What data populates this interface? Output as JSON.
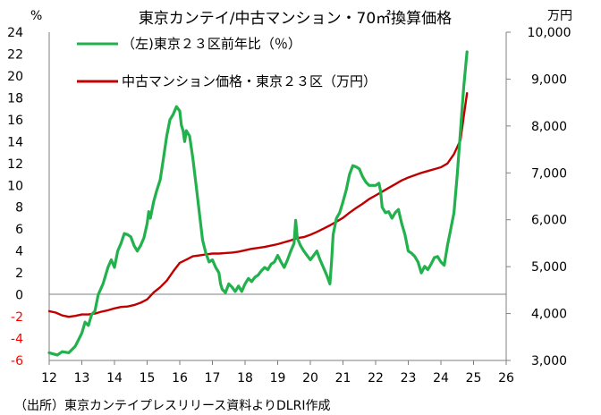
{
  "chart_data": {
    "type": "line",
    "title": "東京カンテイ/中古マンション・70㎡換算価格",
    "source": "（出所）東京カンテイプレスリリース資料よりDLRI作成",
    "y_left": {
      "unit": "%",
      "lim": [
        -6,
        24
      ],
      "ticks": [
        "24",
        "22",
        "20",
        "18",
        "16",
        "14",
        "12",
        "10",
        "8",
        "6",
        "4",
        "2",
        "0",
        "-2",
        "-4",
        "-6"
      ]
    },
    "y_right": {
      "unit": "万円",
      "lim": [
        3000,
        10000
      ],
      "ticks": [
        "10,000",
        "9,000",
        "8,000",
        "7,000",
        "6,000",
        "5,000",
        "4,000",
        "3,000"
      ]
    },
    "x": {
      "lim": [
        12,
        26
      ],
      "ticks": [
        "12",
        "13",
        "14",
        "15",
        "16",
        "17",
        "18",
        "19",
        "20",
        "21",
        "22",
        "23",
        "24",
        "25",
        "26"
      ]
    },
    "colors": {
      "growth": "#22B14C",
      "price": "#C00000",
      "negative_tick": "#FF0000"
    },
    "series": [
      {
        "name": "（左)東京２３区前年比（％）",
        "axis": "left",
        "color": "#22B14C",
        "points": [
          [
            12.0,
            -5.3
          ],
          [
            12.25,
            -5.5
          ],
          [
            12.4,
            -5.2
          ],
          [
            12.6,
            -5.3
          ],
          [
            12.8,
            -4.7
          ],
          [
            13.0,
            -3.5
          ],
          [
            13.1,
            -2.5
          ],
          [
            13.2,
            -2.8
          ],
          [
            13.3,
            -1.8
          ],
          [
            13.4,
            -1.5
          ],
          [
            13.5,
            0.0
          ],
          [
            13.65,
            1.0
          ],
          [
            13.8,
            2.5
          ],
          [
            13.9,
            3.2
          ],
          [
            14.0,
            2.5
          ],
          [
            14.1,
            4.0
          ],
          [
            14.2,
            4.7
          ],
          [
            14.3,
            5.6
          ],
          [
            14.4,
            5.5
          ],
          [
            14.5,
            5.3
          ],
          [
            14.6,
            4.5
          ],
          [
            14.7,
            4.0
          ],
          [
            14.8,
            4.5
          ],
          [
            14.9,
            5.2
          ],
          [
            15.0,
            6.5
          ],
          [
            15.05,
            7.6
          ],
          [
            15.1,
            7.0
          ],
          [
            15.2,
            8.5
          ],
          [
            15.3,
            9.6
          ],
          [
            15.4,
            10.5
          ],
          [
            15.5,
            12.5
          ],
          [
            15.6,
            14.5
          ],
          [
            15.7,
            16.0
          ],
          [
            15.8,
            16.5
          ],
          [
            15.9,
            17.2
          ],
          [
            16.0,
            16.8
          ],
          [
            16.05,
            15.5
          ],
          [
            16.1,
            15.0
          ],
          [
            16.15,
            14.0
          ],
          [
            16.2,
            15.0
          ],
          [
            16.3,
            14.5
          ],
          [
            16.4,
            12.5
          ],
          [
            16.5,
            10.0
          ],
          [
            16.6,
            7.5
          ],
          [
            16.7,
            5.0
          ],
          [
            16.8,
            3.8
          ],
          [
            16.9,
            3.0
          ],
          [
            17.0,
            3.2
          ],
          [
            17.1,
            2.5
          ],
          [
            17.2,
            2.0
          ],
          [
            17.25,
            1.0
          ],
          [
            17.3,
            0.5
          ],
          [
            17.4,
            0.2
          ],
          [
            17.5,
            1.0
          ],
          [
            17.6,
            0.7
          ],
          [
            17.7,
            0.3
          ],
          [
            17.8,
            0.8
          ],
          [
            17.9,
            0.3
          ],
          [
            18.0,
            1.0
          ],
          [
            18.1,
            1.5
          ],
          [
            18.2,
            1.2
          ],
          [
            18.3,
            1.6
          ],
          [
            18.4,
            1.8
          ],
          [
            18.5,
            2.2
          ],
          [
            18.6,
            2.5
          ],
          [
            18.7,
            2.3
          ],
          [
            18.8,
            2.8
          ],
          [
            18.9,
            3.0
          ],
          [
            19.0,
            3.6
          ],
          [
            19.1,
            3.0
          ],
          [
            19.2,
            2.5
          ],
          [
            19.3,
            3.2
          ],
          [
            19.4,
            4.0
          ],
          [
            19.5,
            4.7
          ],
          [
            19.55,
            6.8
          ],
          [
            19.6,
            5.2
          ],
          [
            19.7,
            4.5
          ],
          [
            19.8,
            4.0
          ],
          [
            19.9,
            3.6
          ],
          [
            20.0,
            3.2
          ],
          [
            20.1,
            3.6
          ],
          [
            20.2,
            4.0
          ],
          [
            20.3,
            3.2
          ],
          [
            20.4,
            2.5
          ],
          [
            20.5,
            1.8
          ],
          [
            20.6,
            1.0
          ],
          [
            20.65,
            3.0
          ],
          [
            20.7,
            5.5
          ],
          [
            20.8,
            7.0
          ],
          [
            20.9,
            7.5
          ],
          [
            21.0,
            8.5
          ],
          [
            21.1,
            9.6
          ],
          [
            21.2,
            11.0
          ],
          [
            21.3,
            11.8
          ],
          [
            21.4,
            11.7
          ],
          [
            21.5,
            11.5
          ],
          [
            21.6,
            10.8
          ],
          [
            21.7,
            10.3
          ],
          [
            21.8,
            10.0
          ],
          [
            21.9,
            10.0
          ],
          [
            22.0,
            10.0
          ],
          [
            22.1,
            10.2
          ],
          [
            22.15,
            9.5
          ],
          [
            22.2,
            8.0
          ],
          [
            22.3,
            7.5
          ],
          [
            22.4,
            7.6
          ],
          [
            22.5,
            7.0
          ],
          [
            22.6,
            7.5
          ],
          [
            22.7,
            7.8
          ],
          [
            22.8,
            6.5
          ],
          [
            22.9,
            5.5
          ],
          [
            23.0,
            4.0
          ],
          [
            23.1,
            3.8
          ],
          [
            23.2,
            3.5
          ],
          [
            23.3,
            3.0
          ],
          [
            23.4,
            2.0
          ],
          [
            23.5,
            2.6
          ],
          [
            23.6,
            2.3
          ],
          [
            23.7,
            2.8
          ],
          [
            23.8,
            3.4
          ],
          [
            23.9,
            3.5
          ],
          [
            24.0,
            3.0
          ],
          [
            24.1,
            2.7
          ],
          [
            24.2,
            4.5
          ],
          [
            24.3,
            6.0
          ],
          [
            24.4,
            7.5
          ],
          [
            24.5,
            11.0
          ],
          [
            24.6,
            15.0
          ],
          [
            24.7,
            19.0
          ],
          [
            24.8,
            22.2
          ]
        ]
      },
      {
        "name": "中古マンション価格・東京２３区（万円）",
        "axis": "right",
        "color": "#C00000",
        "points": [
          [
            12.0,
            4050
          ],
          [
            12.2,
            4020
          ],
          [
            12.4,
            3960
          ],
          [
            12.6,
            3930
          ],
          [
            12.8,
            3950
          ],
          [
            13.0,
            3980
          ],
          [
            13.2,
            3980
          ],
          [
            13.4,
            4000
          ],
          [
            13.6,
            4040
          ],
          [
            13.8,
            4070
          ],
          [
            14.0,
            4110
          ],
          [
            14.2,
            4140
          ],
          [
            14.4,
            4150
          ],
          [
            14.6,
            4180
          ],
          [
            14.8,
            4230
          ],
          [
            15.0,
            4300
          ],
          [
            15.2,
            4450
          ],
          [
            15.4,
            4560
          ],
          [
            15.6,
            4700
          ],
          [
            15.8,
            4900
          ],
          [
            16.0,
            5080
          ],
          [
            16.2,
            5150
          ],
          [
            16.4,
            5220
          ],
          [
            16.6,
            5240
          ],
          [
            16.8,
            5260
          ],
          [
            17.0,
            5280
          ],
          [
            17.2,
            5280
          ],
          [
            17.4,
            5290
          ],
          [
            17.6,
            5300
          ],
          [
            17.8,
            5320
          ],
          [
            18.0,
            5350
          ],
          [
            18.2,
            5380
          ],
          [
            18.4,
            5400
          ],
          [
            18.6,
            5420
          ],
          [
            18.8,
            5450
          ],
          [
            19.0,
            5480
          ],
          [
            19.2,
            5520
          ],
          [
            19.4,
            5560
          ],
          [
            19.6,
            5610
          ],
          [
            19.8,
            5630
          ],
          [
            20.0,
            5680
          ],
          [
            20.2,
            5740
          ],
          [
            20.4,
            5810
          ],
          [
            20.6,
            5880
          ],
          [
            20.8,
            5960
          ],
          [
            21.0,
            6040
          ],
          [
            21.2,
            6150
          ],
          [
            21.4,
            6250
          ],
          [
            21.6,
            6340
          ],
          [
            21.8,
            6440
          ],
          [
            22.0,
            6520
          ],
          [
            22.2,
            6600
          ],
          [
            22.4,
            6680
          ],
          [
            22.6,
            6760
          ],
          [
            22.8,
            6840
          ],
          [
            23.0,
            6900
          ],
          [
            23.2,
            6950
          ],
          [
            23.4,
            7000
          ],
          [
            23.6,
            7040
          ],
          [
            23.8,
            7080
          ],
          [
            24.0,
            7120
          ],
          [
            24.2,
            7200
          ],
          [
            24.4,
            7400
          ],
          [
            24.6,
            7700
          ],
          [
            24.7,
            8200
          ],
          [
            24.8,
            8700
          ]
        ]
      }
    ]
  }
}
